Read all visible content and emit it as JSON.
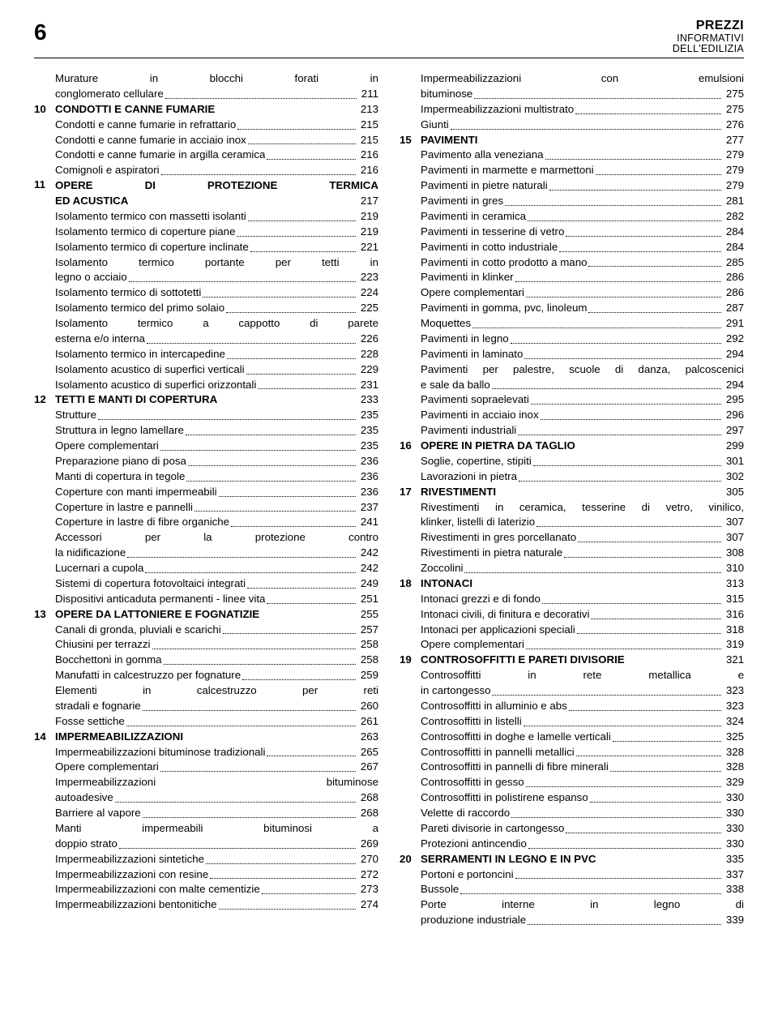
{
  "header": {
    "page_number": "6",
    "title_line1": "PREZZI",
    "title_line2": "INFORMATIVI",
    "title_line3": "DELL'EDILIZIA"
  },
  "left": [
    {
      "chap": "",
      "label": "Murature in blocchi forati in conglomerato cellulare",
      "page": "211",
      "bold": false,
      "multi": true
    },
    {
      "chap": "10",
      "label": "CONDOTTI E CANNE FUMARIE",
      "page": "213",
      "bold": true,
      "nodots": true
    },
    {
      "chap": "",
      "label": "Condotti e canne fumarie in refrattario",
      "page": "215"
    },
    {
      "chap": "",
      "label": "Condotti e canne fumarie in acciaio inox",
      "page": "215"
    },
    {
      "chap": "",
      "label": "Condotti e canne fumarie in argilla ceramica",
      "page": "216"
    },
    {
      "chap": "",
      "label": "Comignoli e aspiratori",
      "page": "216"
    },
    {
      "chap": "11",
      "label": "OPERE DI PROTEZIONE TERMICA ED ACUSTICA",
      "page": "217",
      "bold": true,
      "multi": true,
      "nodots": true
    },
    {
      "chap": "",
      "label": "Isolamento termico con massetti isolanti",
      "page": "219"
    },
    {
      "chap": "",
      "label": "Isolamento termico di coperture piane",
      "page": "219"
    },
    {
      "chap": "",
      "label": "Isolamento termico di coperture inclinate",
      "page": "221"
    },
    {
      "chap": "",
      "label": "Isolamento termico portante per tetti in legno o acciaio",
      "page": "223",
      "multi": true
    },
    {
      "chap": "",
      "label": "Isolamento termico di sottotetti",
      "page": "224"
    },
    {
      "chap": "",
      "label": "Isolamento termico del primo solaio",
      "page": "225"
    },
    {
      "chap": "",
      "label": "Isolamento termico a cappotto di parete esterna e/o interna",
      "page": "226",
      "multi": true
    },
    {
      "chap": "",
      "label": "Isolamento termico in intercapedine",
      "page": "228"
    },
    {
      "chap": "",
      "label": "Isolamento acustico di superfici verticali",
      "page": "229"
    },
    {
      "chap": "",
      "label": "Isolamento acustico di superfici orizzontali",
      "page": "231"
    },
    {
      "chap": "12",
      "label": "TETTI E MANTI DI COPERTURA",
      "page": "233",
      "bold": true,
      "nodots": true
    },
    {
      "chap": "",
      "label": "Strutture",
      "page": "235"
    },
    {
      "chap": "",
      "label": "Struttura in legno lamellare",
      "page": "235"
    },
    {
      "chap": "",
      "label": "Opere complementari",
      "page": "235"
    },
    {
      "chap": "",
      "label": "Preparazione piano di posa",
      "page": "236"
    },
    {
      "chap": "",
      "label": "Manti di copertura in tegole",
      "page": "236"
    },
    {
      "chap": "",
      "label": "Coperture con manti impermeabili",
      "page": "236"
    },
    {
      "chap": "",
      "label": "Coperture in lastre e pannelli",
      "page": "237"
    },
    {
      "chap": "",
      "label": "Coperture in lastre di fibre organiche",
      "page": "241"
    },
    {
      "chap": "",
      "label": "Accessori per la protezione contro la nidificazione",
      "page": "242",
      "multi": true
    },
    {
      "chap": "",
      "label": "Lucernari a cupola",
      "page": "242"
    },
    {
      "chap": "",
      "label": "Sistemi di copertura fotovoltaici integrati",
      "page": "249"
    },
    {
      "chap": "",
      "label": "Dispositivi anticaduta permanenti - linee vita",
      "page": "251"
    },
    {
      "chap": "13",
      "label": "OPERE DA LATTONIERE E FOGNATIZIE",
      "page": "255",
      "bold": true,
      "nodots": true
    },
    {
      "chap": "",
      "label": "Canali di gronda, pluviali e scarichi",
      "page": "257"
    },
    {
      "chap": "",
      "label": "Chiusini per terrazzi",
      "page": "258"
    },
    {
      "chap": "",
      "label": "Bocchettoni in gomma",
      "page": "258"
    },
    {
      "chap": "",
      "label": "Manufatti in calcestruzzo per fognature",
      "page": "259"
    },
    {
      "chap": "",
      "label": "Elementi in calcestruzzo per reti stradali e fognarie",
      "page": "260",
      "multi": true
    },
    {
      "chap": "",
      "label": "Fosse settiche",
      "page": "261"
    },
    {
      "chap": "14",
      "label": "IMPERMEABILIZZAZIONI",
      "page": "263",
      "bold": true,
      "nodots": true
    },
    {
      "chap": "",
      "label": "Impermeabilizzazioni bituminose tradizionali",
      "page": "265"
    },
    {
      "chap": "",
      "label": "Opere complementari",
      "page": "267"
    },
    {
      "chap": "",
      "label": "Impermeabilizzazioni bituminose autoadesive",
      "page": "268",
      "multi": true
    },
    {
      "chap": "",
      "label": "Barriere al vapore",
      "page": "268"
    },
    {
      "chap": "",
      "label": "Manti impermeabili bituminosi a doppio strato",
      "page": "269",
      "multi": true
    },
    {
      "chap": "",
      "label": "Impermeabilizzazioni sintetiche",
      "page": "270"
    },
    {
      "chap": "",
      "label": "Impermeabilizzazioni con resine",
      "page": "272"
    },
    {
      "chap": "",
      "label": "Impermeabilizzazioni con malte cementizie",
      "page": "273"
    },
    {
      "chap": "",
      "label": "Impermeabilizzazioni bentonitiche",
      "page": "274"
    }
  ],
  "right": [
    {
      "chap": "",
      "label": "Impermeabilizzazioni con emulsioni bituminose",
      "page": "275",
      "multi": true
    },
    {
      "chap": "",
      "label": "Impermeabilizzazioni multistrato",
      "page": "275"
    },
    {
      "chap": "",
      "label": "Giunti",
      "page": "276"
    },
    {
      "chap": "15",
      "label": "PAVIMENTI",
      "page": "277",
      "bold": true,
      "nodots": true
    },
    {
      "chap": "",
      "label": "Pavimento alla veneziana",
      "page": "279"
    },
    {
      "chap": "",
      "label": "Pavimenti in marmette e marmettoni",
      "page": "279"
    },
    {
      "chap": "",
      "label": "Pavimenti in pietre naturali",
      "page": "279"
    },
    {
      "chap": "",
      "label": "Pavimenti in gres",
      "page": "281"
    },
    {
      "chap": "",
      "label": "Pavimenti in ceramica",
      "page": "282"
    },
    {
      "chap": "",
      "label": "Pavimenti in tesserine di vetro",
      "page": "284"
    },
    {
      "chap": "",
      "label": "Pavimenti in cotto industriale",
      "page": "284"
    },
    {
      "chap": "",
      "label": "Pavimenti in cotto prodotto a mano",
      "page": "285"
    },
    {
      "chap": "",
      "label": "Pavimenti in klinker",
      "page": "286"
    },
    {
      "chap": "",
      "label": "Opere complementari",
      "page": "286"
    },
    {
      "chap": "",
      "label": "Pavimenti in gomma, pvc, linoleum",
      "page": "287"
    },
    {
      "chap": "",
      "label": "Moquettes",
      "page": "291"
    },
    {
      "chap": "",
      "label": "Pavimenti in legno",
      "page": "292"
    },
    {
      "chap": "",
      "label": "Pavimenti in laminato",
      "page": "294"
    },
    {
      "chap": "",
      "label": "Pavimenti per palestre, scuole di danza, palcoscenici e sale da ballo",
      "page": "294",
      "multi": true
    },
    {
      "chap": "",
      "label": "Pavimenti sopraelevati",
      "page": "295"
    },
    {
      "chap": "",
      "label": "Pavimenti in acciaio inox",
      "page": "296"
    },
    {
      "chap": "",
      "label": "Pavimenti industriali",
      "page": "297"
    },
    {
      "chap": "16",
      "label": "OPERE IN PIETRA DA TAGLIO",
      "page": "299",
      "bold": true,
      "nodots": true
    },
    {
      "chap": "",
      "label": "Soglie, copertine, stipiti",
      "page": "301"
    },
    {
      "chap": "",
      "label": "Lavorazioni in pietra",
      "page": "302"
    },
    {
      "chap": "17",
      "label": "RIVESTIMENTI",
      "page": "305",
      "bold": true,
      "nodots": true
    },
    {
      "chap": "",
      "label": "Rivestimenti in ceramica, tesserine di vetro, vinilico, klinker, listelli di laterizio",
      "page": "307",
      "multi": true
    },
    {
      "chap": "",
      "label": "Rivestimenti in gres porcellanato",
      "page": "307"
    },
    {
      "chap": "",
      "label": "Rivestimenti in pietra naturale",
      "page": "308"
    },
    {
      "chap": "",
      "label": "Zoccolini",
      "page": "310"
    },
    {
      "chap": "18",
      "label": "INTONACI",
      "page": "313",
      "bold": true,
      "nodots": true
    },
    {
      "chap": "",
      "label": "Intonaci grezzi e di fondo",
      "page": "315"
    },
    {
      "chap": "",
      "label": "Intonaci civili, di finitura e decorativi",
      "page": "316"
    },
    {
      "chap": "",
      "label": "Intonaci per applicazioni speciali",
      "page": "318"
    },
    {
      "chap": "",
      "label": "Opere complementari",
      "page": "319"
    },
    {
      "chap": "19",
      "label": "CONTROSOFFITTI E PARETI DIVISORIE",
      "page": "321",
      "bold": true,
      "nodots": true
    },
    {
      "chap": "",
      "label": "Controsoffitti in rete metallica e in cartongesso",
      "page": "323",
      "multi": true
    },
    {
      "chap": "",
      "label": "Controsoffitti in alluminio e abs",
      "page": "323"
    },
    {
      "chap": "",
      "label": "Controsoffitti in listelli",
      "page": "324"
    },
    {
      "chap": "",
      "label": "Controsoffitti in doghe e lamelle verticali",
      "page": "325"
    },
    {
      "chap": "",
      "label": "Controsoffitti in pannelli metallici",
      "page": "328"
    },
    {
      "chap": "",
      "label": "Controsoffitti in pannelli di fibre minerali",
      "page": "328"
    },
    {
      "chap": "",
      "label": "Controsoffitti in gesso",
      "page": "329"
    },
    {
      "chap": "",
      "label": "Controsoffitti in polistirene espanso",
      "page": "330"
    },
    {
      "chap": "",
      "label": "Velette di raccordo",
      "page": "330"
    },
    {
      "chap": "",
      "label": "Pareti divisorie in cartongesso",
      "page": "330"
    },
    {
      "chap": "",
      "label": "Protezioni antincendio",
      "page": "330"
    },
    {
      "chap": "20",
      "label": "SERRAMENTI IN LEGNO E IN PVC",
      "page": "335",
      "bold": true,
      "nodots": true
    },
    {
      "chap": "",
      "label": "Portoni e portoncini",
      "page": "337"
    },
    {
      "chap": "",
      "label": "Bussole",
      "page": "338"
    },
    {
      "chap": "",
      "label": "Porte interne in legno di produzione industriale",
      "page": "339",
      "multi": true
    }
  ]
}
